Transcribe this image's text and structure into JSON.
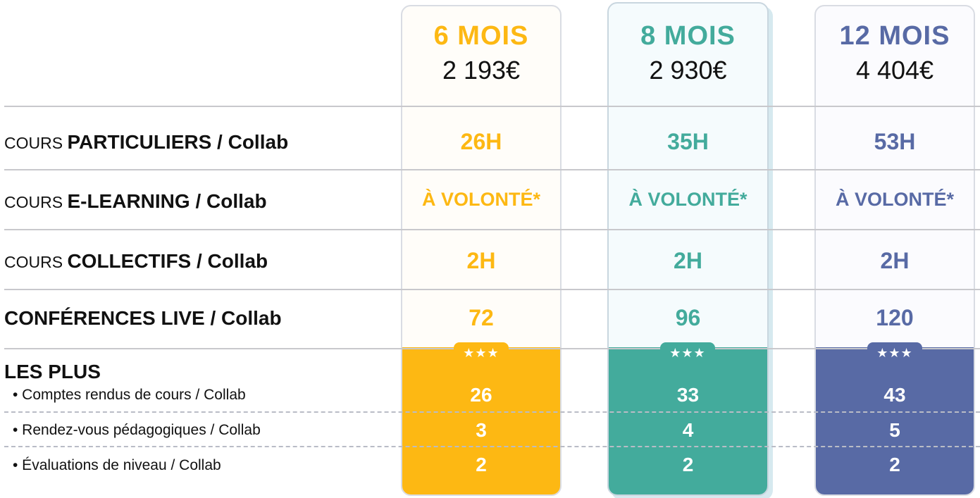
{
  "plans": [
    {
      "name": "6 MOIS",
      "price": "2 193€",
      "color": "#fdb813"
    },
    {
      "name": "8 MOIS",
      "price": "2 930€",
      "color": "#43ab9c"
    },
    {
      "name": "12 MOIS",
      "price": "4 404€",
      "color": "#586aa5"
    }
  ],
  "rows": [
    {
      "prefix": "COURS ",
      "label": "PARTICULIERS / Collab",
      "values": [
        "26H",
        "35H",
        "53H"
      ]
    },
    {
      "prefix": "COURS ",
      "label": "E-LEARNING / Collab",
      "values": [
        "À VOLONTÉ*",
        "À VOLONTÉ*",
        "À VOLONTÉ*"
      ]
    },
    {
      "prefix": "COURS ",
      "label": "COLLECTIFS / Collab",
      "values": [
        "2H",
        "2H",
        "2H"
      ]
    },
    {
      "prefix": "",
      "label": "CONFÉRENCES LIVE / Collab",
      "values": [
        "72",
        "96",
        "120"
      ]
    }
  ],
  "plus": {
    "title": "LES PLUS",
    "badge": "★★★",
    "items": [
      {
        "label": "• Comptes rendus de cours / Collab",
        "values": [
          "26",
          "33",
          "43"
        ]
      },
      {
        "label": "• Rendez-vous pédagogiques / Collab",
        "values": [
          "3",
          "4",
          "5"
        ]
      },
      {
        "label": "• Évaluations de niveau / Collab",
        "values": [
          "2",
          "2",
          "2"
        ]
      }
    ]
  }
}
